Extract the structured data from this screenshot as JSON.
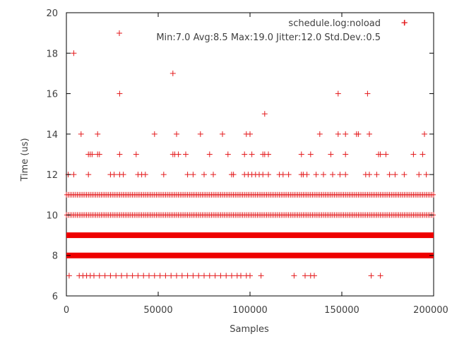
{
  "chart_data": {
    "type": "scatter",
    "xlabel": "Samples",
    "ylabel": "Time (us)",
    "xlim": [
      0,
      200000
    ],
    "ylim": [
      6,
      20
    ],
    "xticks": [
      0,
      50000,
      100000,
      150000,
      200000
    ],
    "yticks": [
      6,
      8,
      10,
      12,
      14,
      16,
      18,
      20
    ],
    "xtick_labels": [
      "0",
      "50000",
      "100000",
      "150000",
      "200000"
    ],
    "ytick_labels": [
      "6",
      "8",
      "10",
      "12",
      "14",
      "16",
      "18",
      "20"
    ],
    "grid": false,
    "legend_position": "top-right",
    "marker_color": "#e41a1c",
    "series": [
      {
        "name": "schedule.log:noload",
        "marker": "+",
        "dense_bands": [
          8,
          9
        ],
        "points": [
          [
            1500,
            7
          ],
          [
            7000,
            7
          ],
          [
            9000,
            7
          ],
          [
            11000,
            7
          ],
          [
            13000,
            7
          ],
          [
            15000,
            7
          ],
          [
            18000,
            7
          ],
          [
            21000,
            7
          ],
          [
            24000,
            7
          ],
          [
            27000,
            7
          ],
          [
            30000,
            7
          ],
          [
            33000,
            7
          ],
          [
            36000,
            7
          ],
          [
            39000,
            7
          ],
          [
            42000,
            7
          ],
          [
            45000,
            7
          ],
          [
            48000,
            7
          ],
          [
            51000,
            7
          ],
          [
            54000,
            7
          ],
          [
            57000,
            7
          ],
          [
            60000,
            7
          ],
          [
            63000,
            7
          ],
          [
            66000,
            7
          ],
          [
            69000,
            7
          ],
          [
            72000,
            7
          ],
          [
            75000,
            7
          ],
          [
            78000,
            7
          ],
          [
            81000,
            7
          ],
          [
            84000,
            7
          ],
          [
            87000,
            7
          ],
          [
            90000,
            7
          ],
          [
            93000,
            7
          ],
          [
            95000,
            7
          ],
          [
            98000,
            7
          ],
          [
            100000,
            7
          ],
          [
            106000,
            7
          ],
          [
            124000,
            7
          ],
          [
            130000,
            7
          ],
          [
            133000,
            7
          ],
          [
            135000,
            7
          ],
          [
            166000,
            7
          ],
          [
            171000,
            7
          ],
          [
            1000,
            12
          ],
          [
            4000,
            12
          ],
          [
            12000,
            12
          ],
          [
            24000,
            12
          ],
          [
            26000,
            12
          ],
          [
            29000,
            12
          ],
          [
            31000,
            12
          ],
          [
            39000,
            12
          ],
          [
            41000,
            12
          ],
          [
            43000,
            12
          ],
          [
            53000,
            12
          ],
          [
            66000,
            12
          ],
          [
            69000,
            12
          ],
          [
            75000,
            12
          ],
          [
            80000,
            12
          ],
          [
            90000,
            12
          ],
          [
            91000,
            12
          ],
          [
            97000,
            12
          ],
          [
            99000,
            12
          ],
          [
            101000,
            12
          ],
          [
            103000,
            12
          ],
          [
            105000,
            12
          ],
          [
            107000,
            12
          ],
          [
            110000,
            12
          ],
          [
            116000,
            12
          ],
          [
            118000,
            12
          ],
          [
            121000,
            12
          ],
          [
            128000,
            12
          ],
          [
            129000,
            12
          ],
          [
            131000,
            12
          ],
          [
            136000,
            12
          ],
          [
            140000,
            12
          ],
          [
            145000,
            12
          ],
          [
            149000,
            12
          ],
          [
            152000,
            12
          ],
          [
            163000,
            12
          ],
          [
            165000,
            12
          ],
          [
            169000,
            12
          ],
          [
            176000,
            12
          ],
          [
            179000,
            12
          ],
          [
            184000,
            12
          ],
          [
            192000,
            12
          ],
          [
            196000,
            12
          ],
          [
            12000,
            13
          ],
          [
            13000,
            13
          ],
          [
            14000,
            13
          ],
          [
            17000,
            13
          ],
          [
            18000,
            13
          ],
          [
            29000,
            13
          ],
          [
            38000,
            13
          ],
          [
            58000,
            13
          ],
          [
            59000,
            13
          ],
          [
            61000,
            13
          ],
          [
            65000,
            13
          ],
          [
            78000,
            13
          ],
          [
            88000,
            13
          ],
          [
            97000,
            13
          ],
          [
            101000,
            13
          ],
          [
            107000,
            13
          ],
          [
            108000,
            13
          ],
          [
            110000,
            13
          ],
          [
            128000,
            13
          ],
          [
            133000,
            13
          ],
          [
            144000,
            13
          ],
          [
            152000,
            13
          ],
          [
            170000,
            13
          ],
          [
            171000,
            13
          ],
          [
            174000,
            13
          ],
          [
            189000,
            13
          ],
          [
            194000,
            13
          ],
          [
            8000,
            14
          ],
          [
            17000,
            14
          ],
          [
            48000,
            14
          ],
          [
            60000,
            14
          ],
          [
            73000,
            14
          ],
          [
            85000,
            14
          ],
          [
            98000,
            14
          ],
          [
            100000,
            14
          ],
          [
            138000,
            14
          ],
          [
            148000,
            14
          ],
          [
            152000,
            14
          ],
          [
            158000,
            14
          ],
          [
            159000,
            14
          ],
          [
            165000,
            14
          ],
          [
            195000,
            14
          ],
          [
            108000,
            15
          ],
          [
            29000,
            16
          ],
          [
            148000,
            16
          ],
          [
            164000,
            16
          ],
          [
            58000,
            17
          ],
          [
            4000,
            18
          ],
          [
            184000,
            19.5
          ]
        ]
      }
    ],
    "annotation": "Min:7.0 Avg:8.5 Max:19.0 Jitter:12.0 Std.Dev.:0.5"
  }
}
